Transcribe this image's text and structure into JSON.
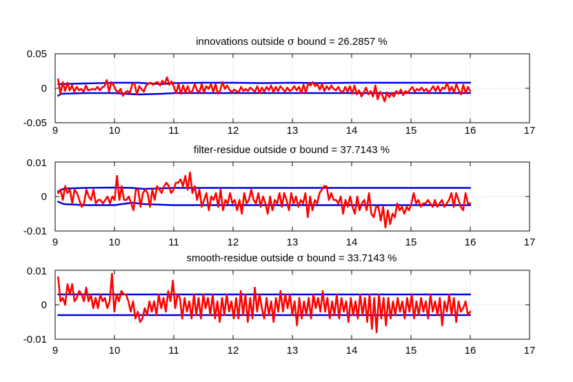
{
  "colors": {
    "residual": "#ff0000",
    "bound": "#0000dd",
    "axes": "#000000",
    "grid": "#999999"
  },
  "chart_data": [
    {
      "type": "line",
      "title_prefix": "innovations outside ",
      "title_symbol": "σ",
      "title_suffix": " bound = 26.2857 %",
      "xlim": [
        9,
        17
      ],
      "ylim": [
        -0.05,
        0.05
      ],
      "xticks": [
        "9",
        "10",
        "11",
        "12",
        "13",
        "14",
        "15",
        "16",
        "17"
      ],
      "yticks": [
        "0.05",
        "0",
        "-0.05"
      ],
      "grid": true,
      "series": [
        {
          "x_start": 9.05,
          "x_end": 16.0,
          "values": [
            0.013,
            -0.008,
            0.009,
            -0.004,
            0.008,
            -0.003,
            0.004,
            -0.005,
            0.002,
            -0.003,
            -0.001,
            -0.005,
            0.004,
            -0.003,
            -0.002,
            -0.001,
            -0.002,
            0.002,
            -0.003,
            0.001,
            0.003,
            0.012,
            -0.005,
            0.009,
            0.004,
            -0.003,
            -0.006,
            -0.001,
            -0.011,
            -0.006,
            -0.004,
            -0.007,
            0.006,
            0.007,
            -0.009,
            0.003,
            -0.001,
            -0.005,
            0.004,
            0.007,
            0.008,
            0.005,
            0.008,
            0.009,
            0.004,
            0.011,
            0.006,
            0.016,
            0.005,
            0.01,
            0.002,
            -0.007,
            0.006,
            -0.008,
            0.004,
            -0.006,
            0.003,
            -0.007,
            -0.004,
            0.006,
            -0.003,
            -0.006,
            0.006,
            -0.006,
            0.003,
            -0.001,
            0.006,
            -0.005,
            0.006,
            -0.008,
            -0.003,
            0.009,
            -0.001,
            0.004,
            -0.002,
            -0.006,
            -0.002,
            -0.004,
            -0.006,
            0.002,
            -0.004,
            -0.001,
            -0.004,
            0.001,
            -0.002,
            -0.005,
            0.003,
            -0.007,
            0.001,
            -0.005,
            0.002,
            -0.003,
            0.004,
            -0.006,
            0.002,
            -0.004,
            0.003,
            -0.001,
            -0.005,
            0.001,
            -0.004,
            -0.002,
            0.003,
            -0.003,
            0.002,
            -0.007,
            0.005,
            -0.006,
            0.007,
            0.004,
            0.009,
            0.003,
            0.006,
            -0.002,
            0.006,
            -0.004,
            0.003,
            -0.002,
            0.004,
            -0.001,
            -0.003,
            0.002,
            -0.004,
            -0.006,
            0.002,
            -0.005,
            0.003,
            -0.008,
            0.004,
            -0.009,
            -0.003,
            -0.012,
            -0.006,
            0.001,
            -0.009,
            -0.004,
            -0.012,
            0.004,
            -0.016,
            -0.005,
            -0.01,
            -0.019,
            -0.006,
            -0.013,
            -0.007,
            -0.012,
            -0.004,
            -0.008,
            -0.002,
            -0.01,
            -0.004,
            -0.007,
            -0.002,
            0.002,
            -0.005,
            -0.001,
            -0.003,
            0.001,
            -0.004,
            -0.001,
            -0.006,
            -0.002,
            0.003,
            -0.004,
            0.003,
            -0.005,
            0.001,
            -0.001,
            0.008,
            -0.004,
            0.002,
            -0.006,
            0.006,
            -0.003,
            -0.009,
            0.005,
            -0.007,
            0.002,
            -0.004
          ]
        },
        {
          "x": [
            9.05,
            9.5,
            10.0,
            10.4,
            10.8,
            11.0,
            11.5,
            12.0,
            12.5,
            13.0,
            13.5,
            14.0,
            14.5,
            15.0,
            15.5,
            16.0
          ],
          "values": [
            0.006,
            0.007,
            0.008,
            0.008,
            0.006,
            0.0075,
            0.008,
            0.008,
            0.0075,
            0.008,
            0.0075,
            0.008,
            0.008,
            0.008,
            0.008,
            0.008
          ]
        },
        {
          "x": [
            9.05,
            9.1,
            9.5,
            10.0,
            10.4,
            10.8,
            11.0,
            11.5,
            12.0,
            12.5,
            13.0,
            13.5,
            14.0,
            14.5,
            15.0,
            15.5,
            16.0
          ],
          "values": [
            -0.011,
            -0.008,
            -0.007,
            -0.007,
            -0.009,
            -0.008,
            -0.007,
            -0.007,
            -0.007,
            -0.007,
            -0.007,
            -0.007,
            -0.007,
            -0.007,
            -0.007,
            -0.007,
            -0.007
          ]
        }
      ]
    },
    {
      "type": "line",
      "title_prefix": "filter-residue outside ",
      "title_symbol": "σ",
      "title_suffix": " bound = 37.7143 %",
      "xlim": [
        9,
        17
      ],
      "ylim": [
        -0.01,
        0.01
      ],
      "xticks": [
        "9",
        "10",
        "11",
        "12",
        "13",
        "14",
        "15",
        "16",
        "17"
      ],
      "yticks": [
        "0.01",
        "0",
        "-0.01"
      ],
      "grid": true,
      "series": [
        {
          "x_start": 9.05,
          "x_end": 16.0,
          "values": [
            0.001,
            0.002,
            -0.001,
            0.003,
            0.001,
            0.002,
            -0.002,
            0.002,
            0.001,
            -0.001,
            -0.003,
            -0.002,
            0.002,
            0.0,
            -0.001,
            0.002,
            -0.002,
            -0.001,
            -0.001,
            -0.002,
            -0.001,
            0.0,
            -0.002,
            0.0,
            -0.001,
            0.006,
            -0.001,
            0.003,
            -0.001,
            -0.001,
            0.0,
            -0.002,
            -0.004,
            0.002,
            0.002,
            -0.003,
            0.001,
            0.002,
            0.001,
            -0.003,
            0.002,
            -0.001,
            0.003,
            0.002,
            0.001,
            0.003,
            0.004,
            0.003,
            0.001,
            0.002,
            0.004,
            0.004,
            0.005,
            0.003,
            0.006,
            0.002,
            0.007,
            0.001,
            0.003,
            -0.001,
            0.002,
            -0.003,
            -0.001,
            0.001,
            -0.004,
            0.0,
            -0.001,
            0.001,
            -0.003,
            0.002,
            -0.004,
            -0.001,
            -0.002,
            0.001,
            -0.002,
            -0.001,
            -0.004,
            -0.001,
            -0.005,
            0.001,
            -0.002,
            -0.001,
            0.002,
            -0.001,
            -0.002,
            0.001,
            -0.003,
            0.0,
            -0.002,
            -0.005,
            0.0,
            -0.004,
            -0.001,
            -0.002,
            0.001,
            -0.003,
            0.001,
            -0.001,
            -0.004,
            0.001,
            -0.002,
            0.0,
            -0.003,
            -0.001,
            -0.002,
            0.001,
            -0.006,
            0.0,
            -0.004,
            -0.001,
            -0.002,
            0.001,
            0.002,
            0.003,
            0.003,
            -0.001,
            0.001,
            -0.001,
            -0.001,
            -0.002,
            0.0,
            -0.005,
            -0.001,
            -0.003,
            0.0,
            -0.003,
            -0.005,
            0.0,
            -0.004,
            -0.002,
            -0.001,
            -0.004,
            0.001,
            -0.005,
            -0.006,
            -0.003,
            -0.003,
            -0.007,
            -0.003,
            -0.009,
            -0.004,
            -0.008,
            -0.005,
            -0.006,
            -0.002,
            -0.004,
            -0.003,
            -0.005,
            -0.003,
            -0.004,
            -0.002,
            0.001,
            -0.002,
            -0.001,
            -0.003,
            -0.002,
            -0.002,
            -0.001,
            -0.002,
            -0.003,
            -0.001,
            -0.003,
            -0.002,
            -0.001,
            -0.003,
            -0.002,
            -0.001,
            0.001,
            -0.003,
            0.001,
            -0.001,
            -0.003,
            -0.004,
            0.001,
            -0.002,
            -0.002
          ]
        },
        {
          "x": [
            9.05,
            9.15,
            9.5,
            10.0,
            10.3,
            10.5,
            11.0,
            11.5,
            12.0,
            13.0,
            14.0,
            15.0,
            16.0
          ],
          "values": [
            0.0015,
            0.0023,
            0.0025,
            0.0026,
            0.0025,
            0.0022,
            0.0025,
            0.0025,
            0.0025,
            0.0025,
            0.0025,
            0.0025,
            0.0025
          ]
        },
        {
          "x": [
            9.05,
            9.15,
            9.5,
            10.0,
            10.3,
            10.5,
            11.0,
            11.5,
            12.0,
            13.0,
            14.0,
            15.0,
            16.0
          ],
          "values": [
            -0.0015,
            -0.0022,
            -0.0025,
            -0.0025,
            -0.0018,
            -0.0022,
            -0.0025,
            -0.0025,
            -0.0025,
            -0.0025,
            -0.0025,
            -0.0025,
            -0.0025
          ]
        }
      ]
    },
    {
      "type": "line",
      "title_prefix": "smooth-residue outside ",
      "title_symbol": "σ",
      "title_suffix": " bound = 33.7143 %",
      "xlim": [
        9,
        17
      ],
      "ylim": [
        -0.01,
        0.01
      ],
      "xticks": [
        "9",
        "10",
        "11",
        "12",
        "13",
        "14",
        "15",
        "16",
        "17"
      ],
      "yticks": [
        "0.01",
        "0",
        "-0.01"
      ],
      "grid": true,
      "series": [
        {
          "x_start": 9.05,
          "x_end": 16.0,
          "values": [
            0.008,
            0.001,
            0.002,
            0.0,
            0.006,
            0.003,
            0.006,
            0.001,
            0.002,
            0.004,
            0.003,
            0.001,
            0.005,
            0.001,
            0.003,
            -0.001,
            0.002,
            -0.001,
            0.003,
            0.001,
            0.002,
            -0.001,
            0.001,
            0.009,
            -0.002,
            0.003,
            0.001,
            0.004,
            0.003,
            0.003,
            0.001,
            -0.002,
            0.001,
            -0.004,
            -0.002,
            -0.005,
            -0.004,
            -0.001,
            -0.003,
            0.001,
            -0.002,
            0.001,
            -0.003,
            0.003,
            -0.001,
            0.002,
            -0.002,
            0.004,
            0.001,
            0.007,
            -0.001,
            0.003,
            0.002,
            -0.004,
            0.002,
            -0.002,
            0.001,
            -0.004,
            0.003,
            -0.003,
            0.002,
            -0.004,
            0.003,
            -0.001,
            0.002,
            -0.003,
            0.003,
            -0.004,
            0.001,
            -0.005,
            0.002,
            -0.003,
            0.003,
            -0.002,
            0.001,
            -0.004,
            0.002,
            -0.004,
            0.004,
            -0.003,
            0.003,
            -0.005,
            0.002,
            -0.004,
            0.005,
            -0.002,
            0.003,
            -0.001,
            -0.004,
            0.002,
            -0.003,
            0.001,
            -0.005,
            0.002,
            -0.002,
            0.004,
            -0.002,
            0.003,
            -0.001,
            0.003,
            -0.003,
            0.001,
            -0.006,
            0.002,
            -0.004,
            0.001,
            -0.003,
            0.002,
            -0.004,
            0.003,
            -0.001,
            0.002,
            -0.002,
            0.004,
            -0.002,
            0.002,
            -0.004,
            0.001,
            -0.003,
            0.003,
            -0.004,
            0.002,
            -0.002,
            0.001,
            -0.005,
            0.002,
            -0.003,
            0.001,
            -0.004,
            0.003,
            -0.003,
            0.002,
            -0.005,
            0.003,
            -0.007,
            0.002,
            -0.008,
            0.003,
            -0.004,
            0.002,
            -0.006,
            0.002,
            -0.004,
            0.001,
            -0.003,
            0.002,
            -0.002,
            0.001,
            -0.004,
            0.002,
            -0.002,
            0.003,
            -0.004,
            0.001,
            -0.003,
            0.002,
            -0.002,
            0.001,
            -0.004,
            0.003,
            -0.002,
            0.001,
            -0.003,
            0.002,
            -0.006,
            0.001,
            -0.002,
            0.003,
            -0.003,
            0.002,
            -0.005,
            0.001,
            -0.002,
            -0.001,
            0.001,
            -0.003,
            -0.002
          ]
        },
        {
          "x": [
            9.05,
            16.0
          ],
          "values": [
            0.003,
            0.003
          ]
        },
        {
          "x": [
            9.05,
            16.0
          ],
          "values": [
            -0.003,
            -0.003
          ]
        }
      ]
    }
  ]
}
